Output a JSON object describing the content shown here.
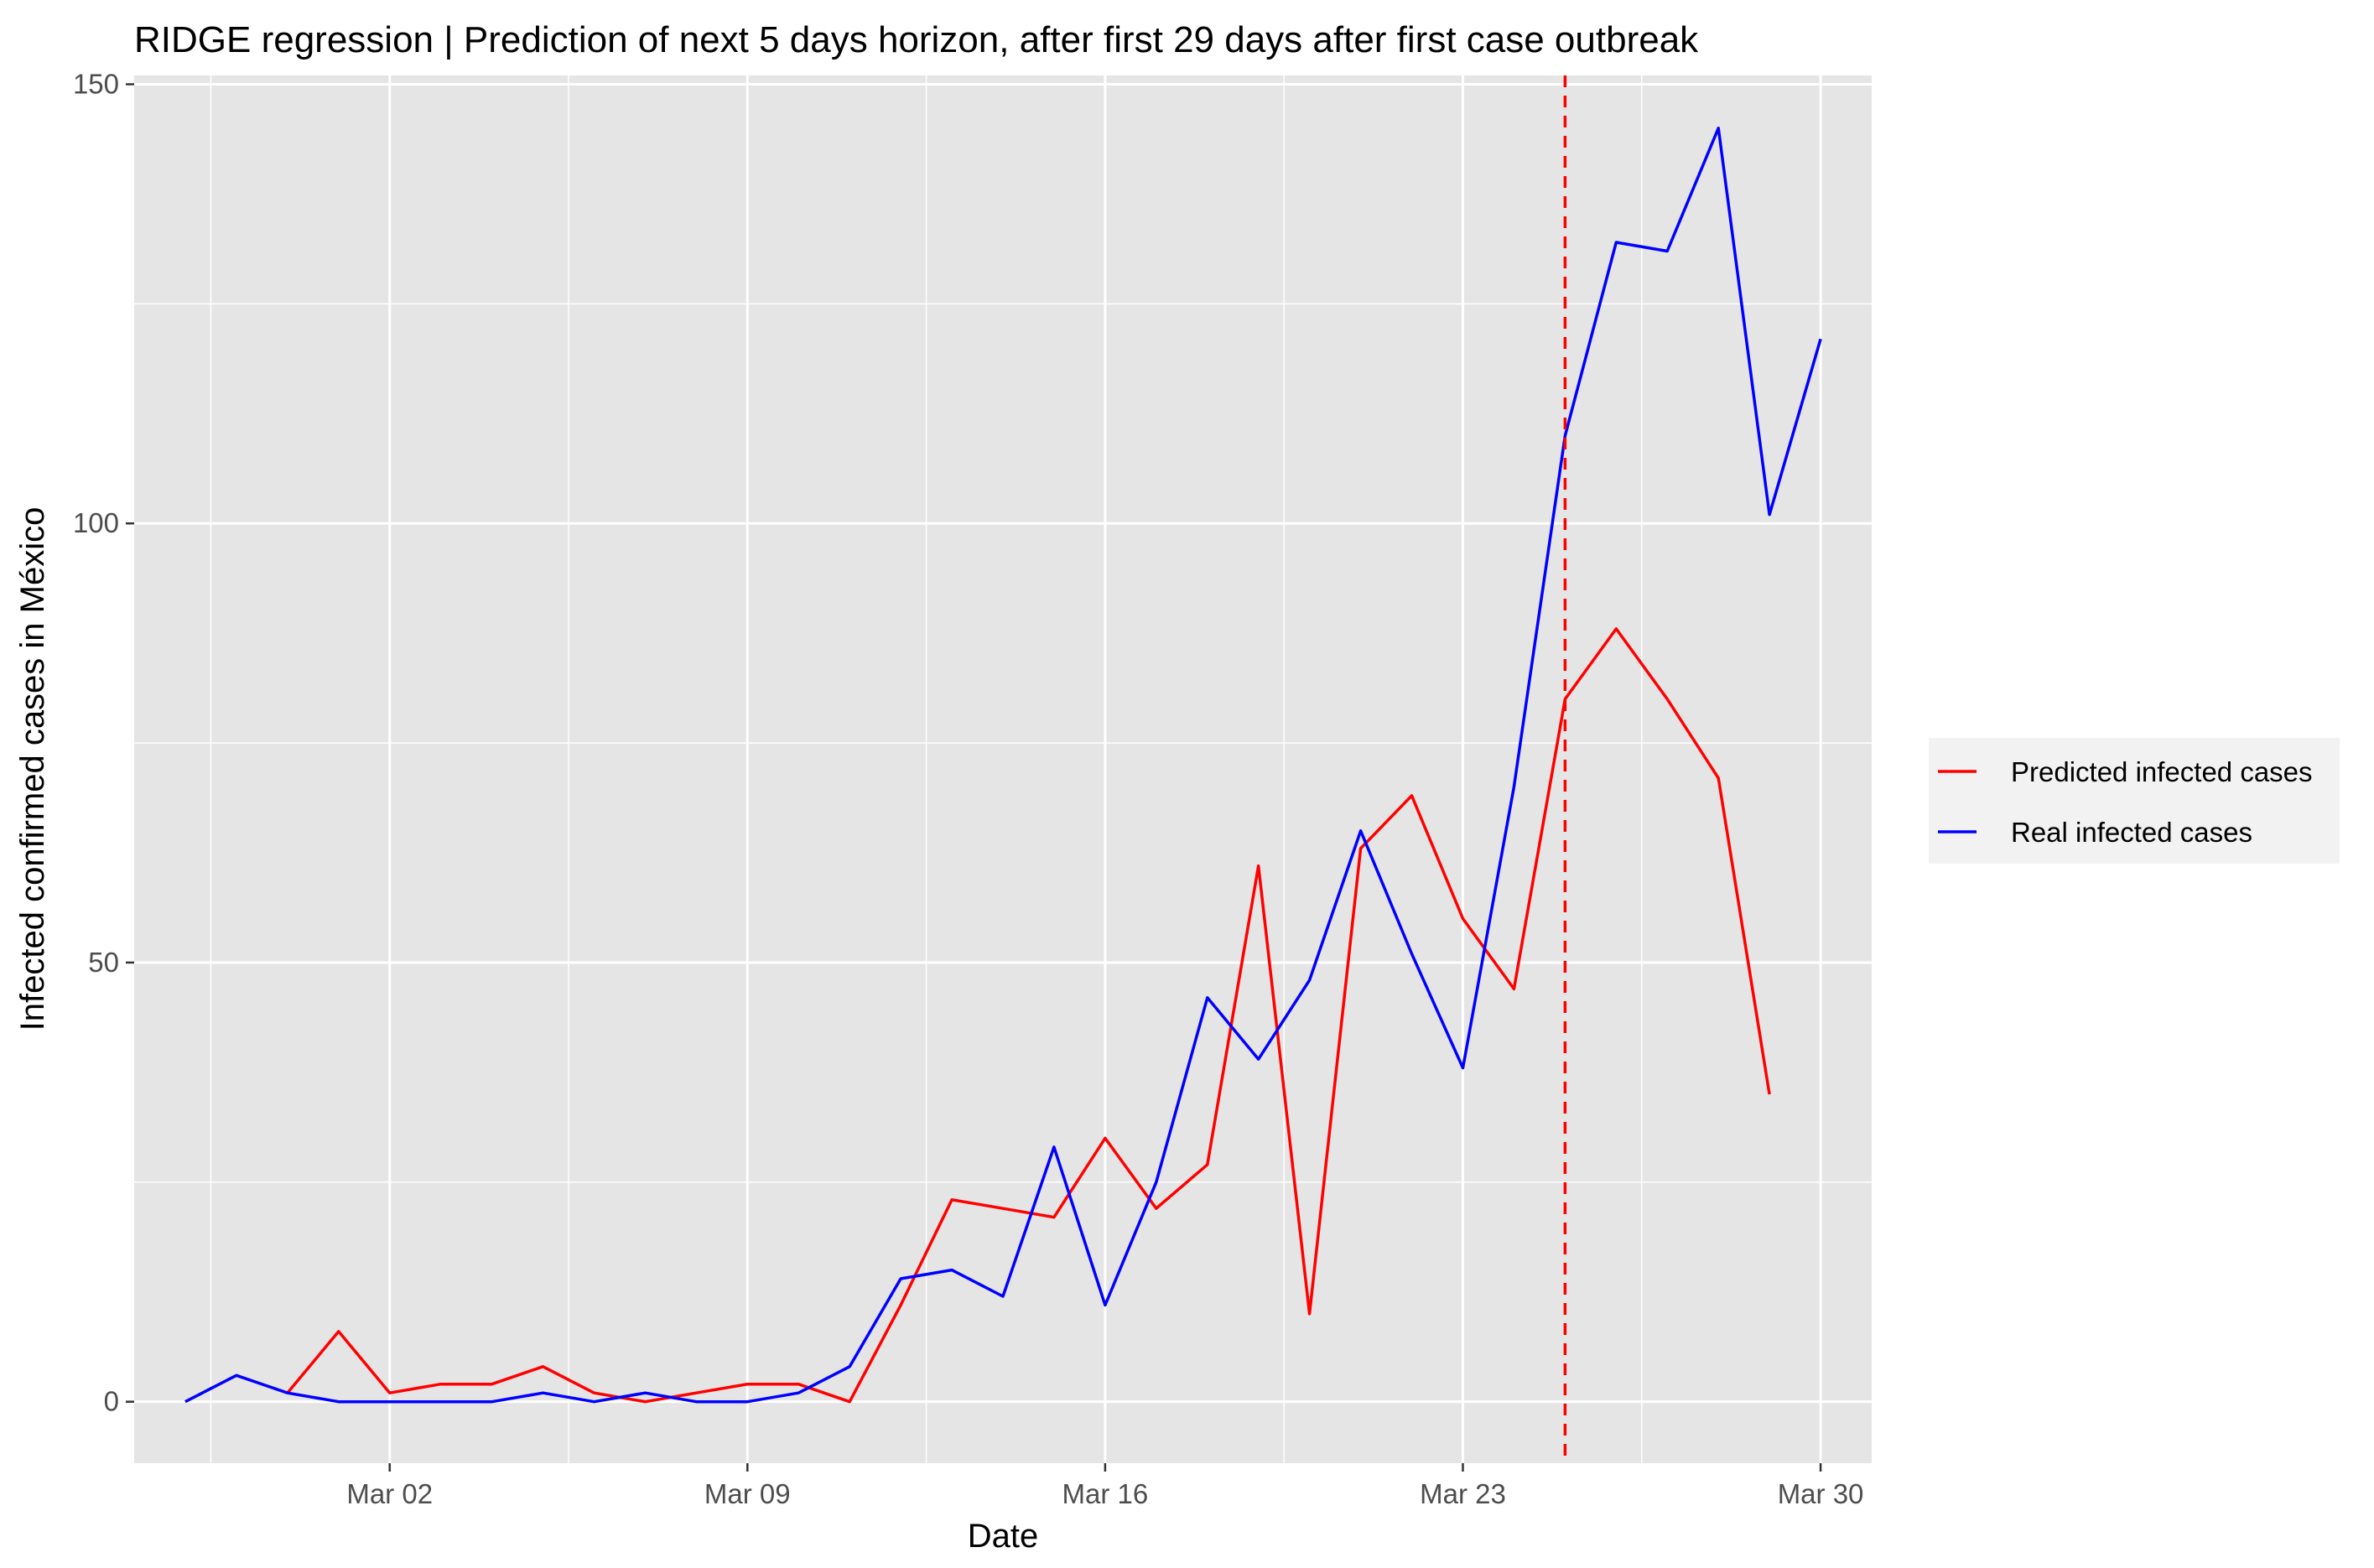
{
  "chart_data": {
    "type": "line",
    "title": "RIDGE regression | Prediction of next 5 days horizon, after first 29 days after first case outbreak",
    "xlabel": "Date",
    "ylabel": "Infected confirmed cases in México",
    "x_ticks": [
      "Mar 02",
      "Mar 09",
      "Mar 16",
      "Mar 23",
      "Mar 30"
    ],
    "x_tick_dates": [
      "2020-03-02",
      "2020-03-09",
      "2020-03-16",
      "2020-03-23",
      "2020-03-30"
    ],
    "y_ticks": [
      0,
      50,
      100,
      150
    ],
    "xlim": [
      "2020-02-26",
      "2020-03-31"
    ],
    "ylim": [
      -7,
      151
    ],
    "grid": true,
    "legend_position": "right",
    "vline": {
      "x": "2020-03-25",
      "color": "#ff0000",
      "style": "dashed"
    },
    "series": [
      {
        "name": "Predicted infected cases",
        "color": "#ff0000",
        "points": [
          [
            "2020-02-29",
            1
          ],
          [
            "2020-03-01",
            8
          ],
          [
            "2020-03-02",
            1
          ],
          [
            "2020-03-03",
            2
          ],
          [
            "2020-03-04",
            2
          ],
          [
            "2020-03-05",
            4
          ],
          [
            "2020-03-06",
            1
          ],
          [
            "2020-03-07",
            0
          ],
          [
            "2020-03-08",
            1
          ],
          [
            "2020-03-09",
            2
          ],
          [
            "2020-03-10",
            2
          ],
          [
            "2020-03-11",
            0
          ],
          [
            "2020-03-12",
            11
          ],
          [
            "2020-03-13",
            23
          ],
          [
            "2020-03-14",
            22
          ],
          [
            "2020-03-15",
            21
          ],
          [
            "2020-03-16",
            30
          ],
          [
            "2020-03-17",
            22
          ],
          [
            "2020-03-18",
            27
          ],
          [
            "2020-03-19",
            61
          ],
          [
            "2020-03-20",
            10
          ],
          [
            "2020-03-21",
            63
          ],
          [
            "2020-03-22",
            69
          ],
          [
            "2020-03-23",
            55
          ],
          [
            "2020-03-24",
            47
          ],
          [
            "2020-03-25",
            80
          ],
          [
            "2020-03-26",
            88
          ],
          [
            "2020-03-27",
            80
          ],
          [
            "2020-03-28",
            71
          ],
          [
            "2020-03-29",
            35
          ]
        ]
      },
      {
        "name": "Real infected cases",
        "color": "#0000ff",
        "points": [
          [
            "2020-02-27",
            0
          ],
          [
            "2020-02-28",
            3
          ],
          [
            "2020-02-29",
            1
          ],
          [
            "2020-03-01",
            0
          ],
          [
            "2020-03-02",
            0
          ],
          [
            "2020-03-03",
            0
          ],
          [
            "2020-03-04",
            0
          ],
          [
            "2020-03-05",
            1
          ],
          [
            "2020-03-06",
            0
          ],
          [
            "2020-03-07",
            1
          ],
          [
            "2020-03-08",
            0
          ],
          [
            "2020-03-09",
            0
          ],
          [
            "2020-03-10",
            1
          ],
          [
            "2020-03-11",
            4
          ],
          [
            "2020-03-12",
            14
          ],
          [
            "2020-03-13",
            15
          ],
          [
            "2020-03-14",
            12
          ],
          [
            "2020-03-15",
            29
          ],
          [
            "2020-03-16",
            11
          ],
          [
            "2020-03-17",
            25
          ],
          [
            "2020-03-18",
            46
          ],
          [
            "2020-03-19",
            39
          ],
          [
            "2020-03-20",
            48
          ],
          [
            "2020-03-21",
            65
          ],
          [
            "2020-03-22",
            51
          ],
          [
            "2020-03-23",
            38
          ],
          [
            "2020-03-24",
            70
          ],
          [
            "2020-03-25",
            110
          ],
          [
            "2020-03-26",
            132
          ],
          [
            "2020-03-27",
            131
          ],
          [
            "2020-03-28",
            145
          ],
          [
            "2020-03-29",
            101
          ],
          [
            "2020-03-30",
            121
          ]
        ]
      }
    ]
  }
}
